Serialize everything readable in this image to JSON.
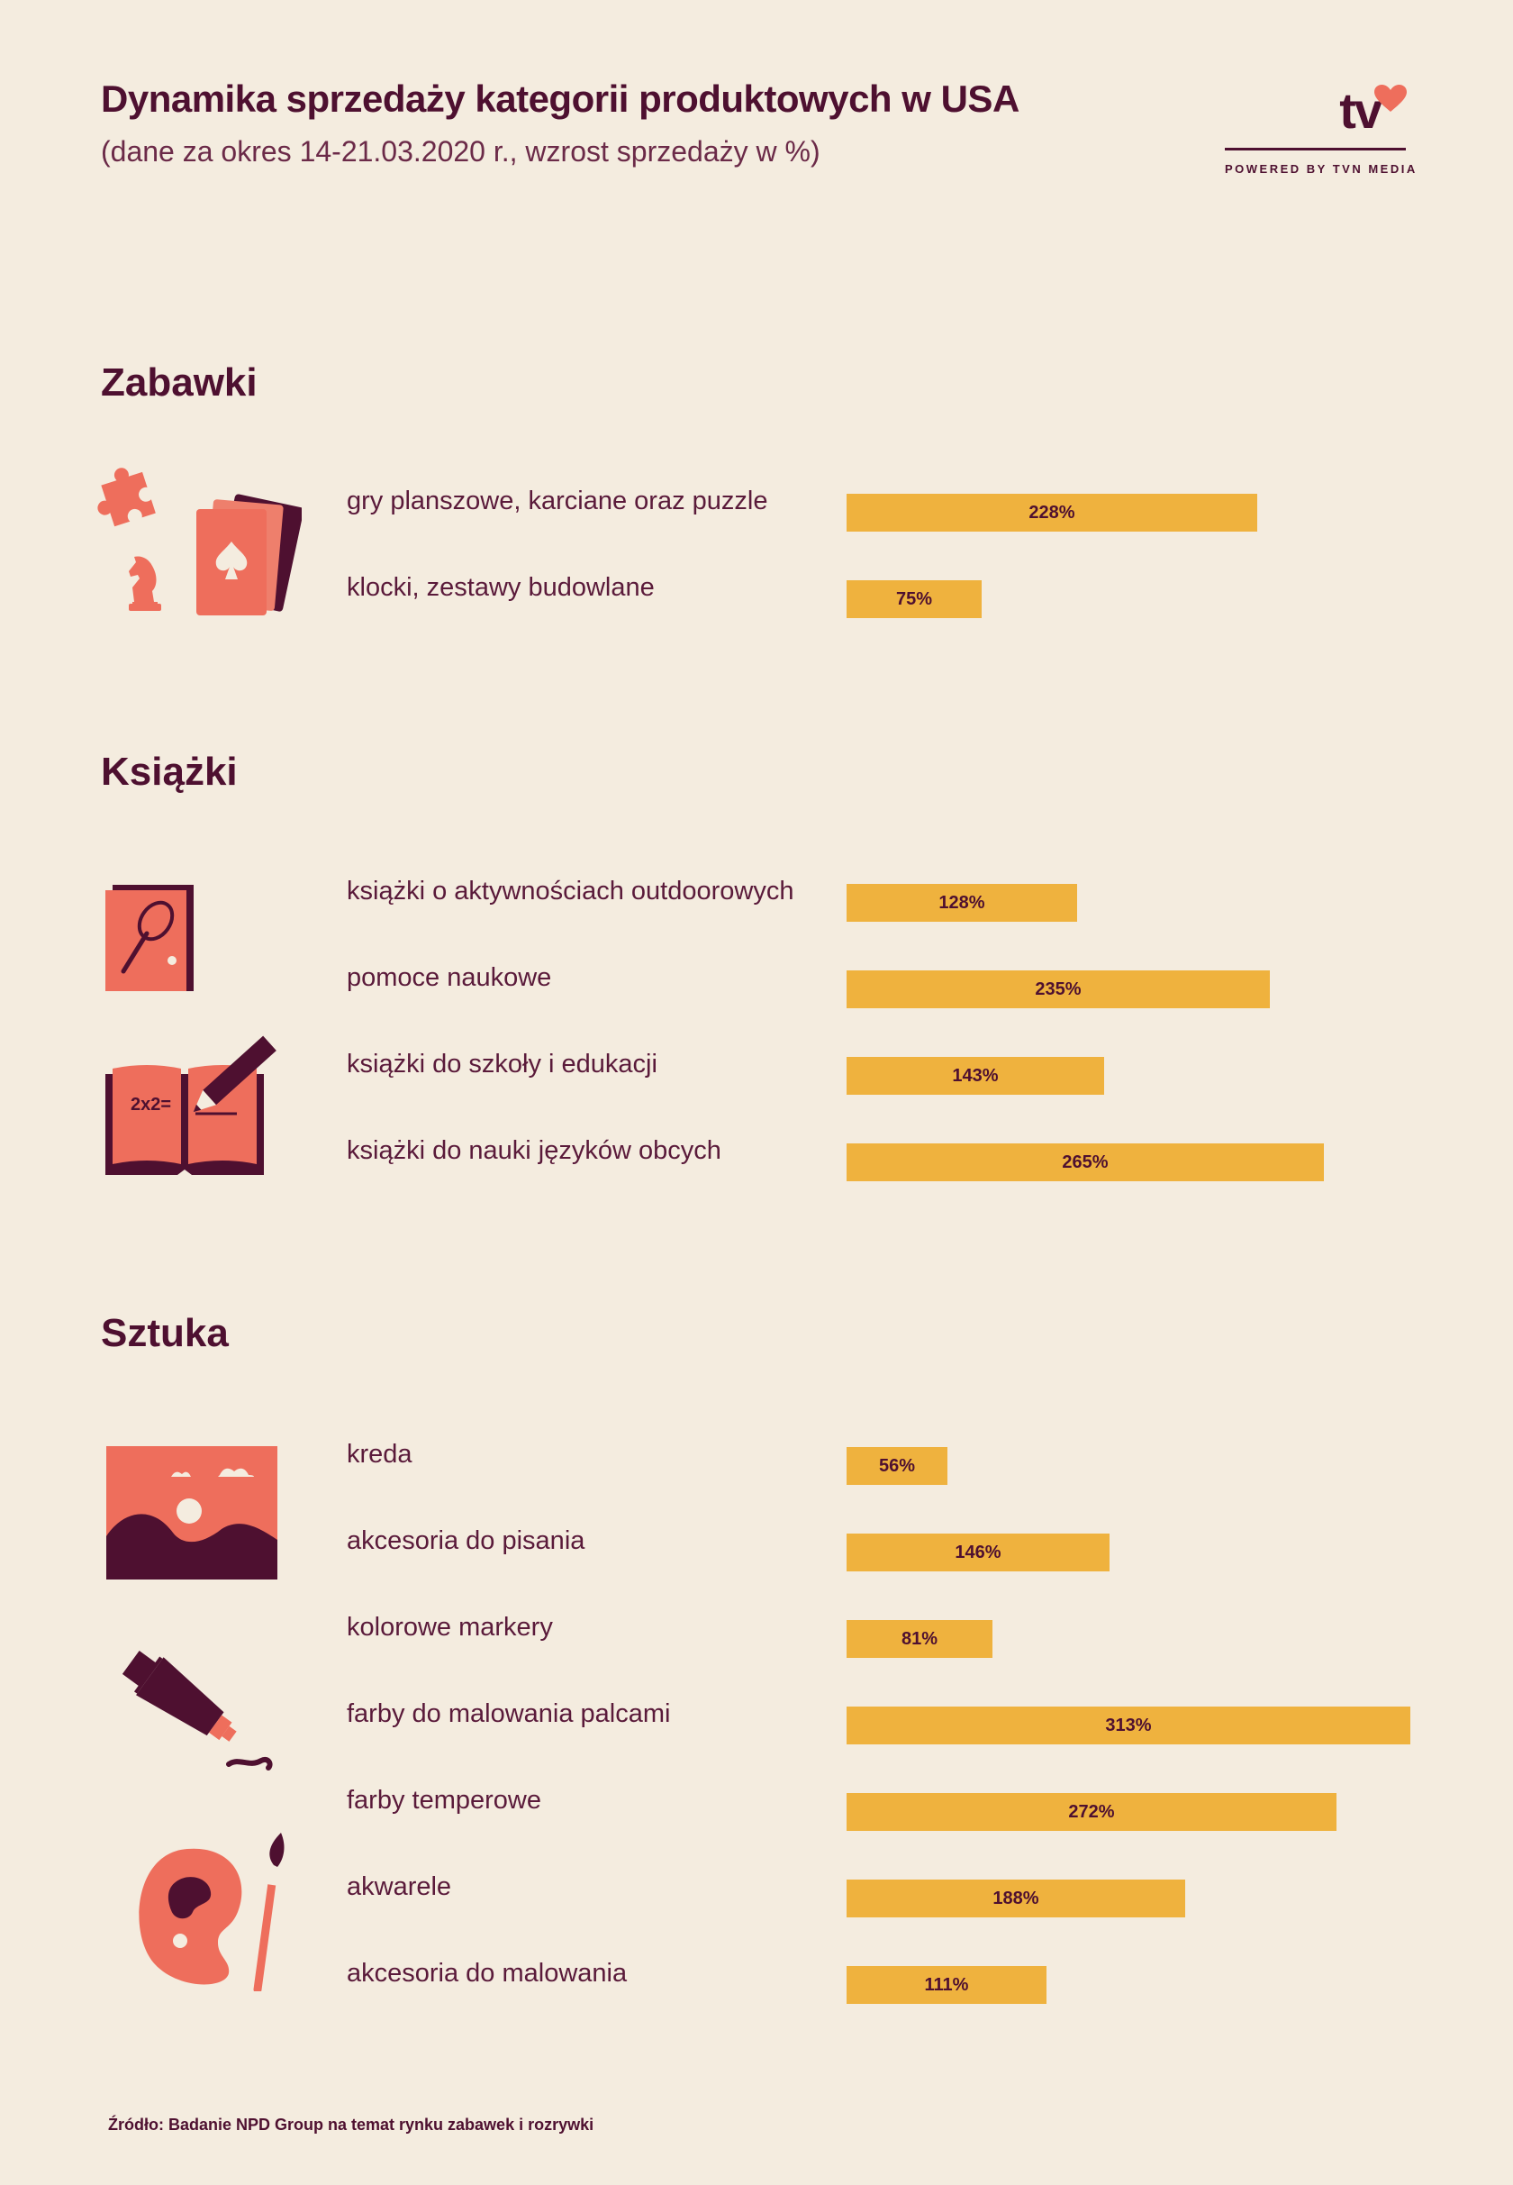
{
  "header": {
    "title": "Dynamika sprzedaży kategorii produktowych w USA",
    "subtitle": "(dane za okres 14-21.03.2020 r., wzrost sprzedaży w %)"
  },
  "logo": {
    "text": "tv",
    "tagline": "POWERED BY TVN MEDIA"
  },
  "colors": {
    "background": "#f4ecdf",
    "bar": "#efb23e",
    "text": "#4e1030",
    "accent": "#ee6e5c"
  },
  "icons": [
    "puzzle-icon",
    "chess-knight-icon",
    "playing-cards-icon",
    "tennis-book-icon",
    "open-book-icon",
    "landscape-picture-icon",
    "paint-tube-icon",
    "palette-icon"
  ],
  "chart_data": {
    "type": "bar",
    "title": "Dynamika sprzedaży kategorii produktowych w USA",
    "subtitle": "(dane za okres 14-21.03.2020 r., wzrost sprzedaży w %)",
    "unit": "%",
    "max_value": 313,
    "groups": [
      {
        "name": "Zabawki",
        "categories": [
          "gry planszowe, karciane oraz puzzle",
          "klocki, zestawy budowlane"
        ],
        "values": [
          228,
          75
        ],
        "labels": [
          "228%",
          "75%"
        ]
      },
      {
        "name": "Książki",
        "categories": [
          "książki o aktywnościach outdoorowych",
          "pomoce naukowe",
          "książki do szkoły i edukacji",
          "książki do nauki języków obcych"
        ],
        "values": [
          128,
          235,
          143,
          265
        ],
        "labels": [
          "128%",
          "235%",
          "143%",
          "265%"
        ]
      },
      {
        "name": "Sztuka",
        "categories": [
          "kreda",
          "akcesoria do pisania",
          "kolorowe markery",
          "farby do malowania palcami",
          "farby temperowe",
          "akwarele",
          "akcesoria do malowania"
        ],
        "values": [
          56,
          146,
          81,
          313,
          272,
          188,
          111
        ],
        "labels": [
          "56%",
          "146%",
          "81%",
          "313%",
          "272%",
          "188%",
          "111%"
        ]
      }
    ]
  },
  "footer": {
    "source": "Źródło: Badanie NPD Group na temat rynku zabawek i rozrywki"
  }
}
